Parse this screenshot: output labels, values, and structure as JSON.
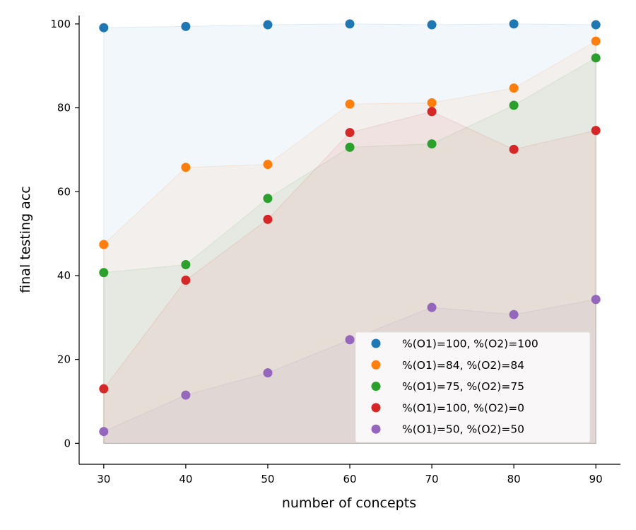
{
  "chart_data": {
    "type": "scatter",
    "title": "",
    "xlabel": "number of concepts",
    "ylabel": "final testing acc",
    "x": [
      30,
      40,
      50,
      60,
      70,
      80,
      90
    ],
    "xlim": [
      27,
      93
    ],
    "ylim": [
      -5,
      102
    ],
    "xticks": [
      30,
      40,
      50,
      60,
      70,
      80,
      90
    ],
    "yticks": [
      0,
      20,
      40,
      60,
      80,
      100
    ],
    "grid": false,
    "fill_to_zero": true,
    "legend_position": "lower-right",
    "series": [
      {
        "name": "%(O1)=100, %(O2)=100",
        "color": "#1f77b4",
        "values": [
          99.1,
          99.4,
          99.8,
          100.0,
          99.8,
          100.0,
          99.8
        ]
      },
      {
        "name": "%(O1)=84, %(O2)=84",
        "color": "#ff7f0e",
        "values": [
          47.4,
          65.8,
          66.5,
          80.9,
          81.2,
          84.7,
          95.9
        ]
      },
      {
        "name": "%(O1)=75, %(O2)=75",
        "color": "#2ca02c",
        "values": [
          40.7,
          42.6,
          58.4,
          70.6,
          71.4,
          80.6,
          91.9
        ]
      },
      {
        "name": "%(O1)=100, %(O2)=0",
        "color": "#d62728",
        "values": [
          13.0,
          38.9,
          53.4,
          74.1,
          79.1,
          70.1,
          74.6
        ]
      },
      {
        "name": "%(O1)=50, %(O2)=50",
        "color": "#9467bd",
        "values": [
          2.8,
          11.5,
          16.8,
          24.7,
          32.4,
          30.7,
          34.3
        ]
      }
    ]
  }
}
